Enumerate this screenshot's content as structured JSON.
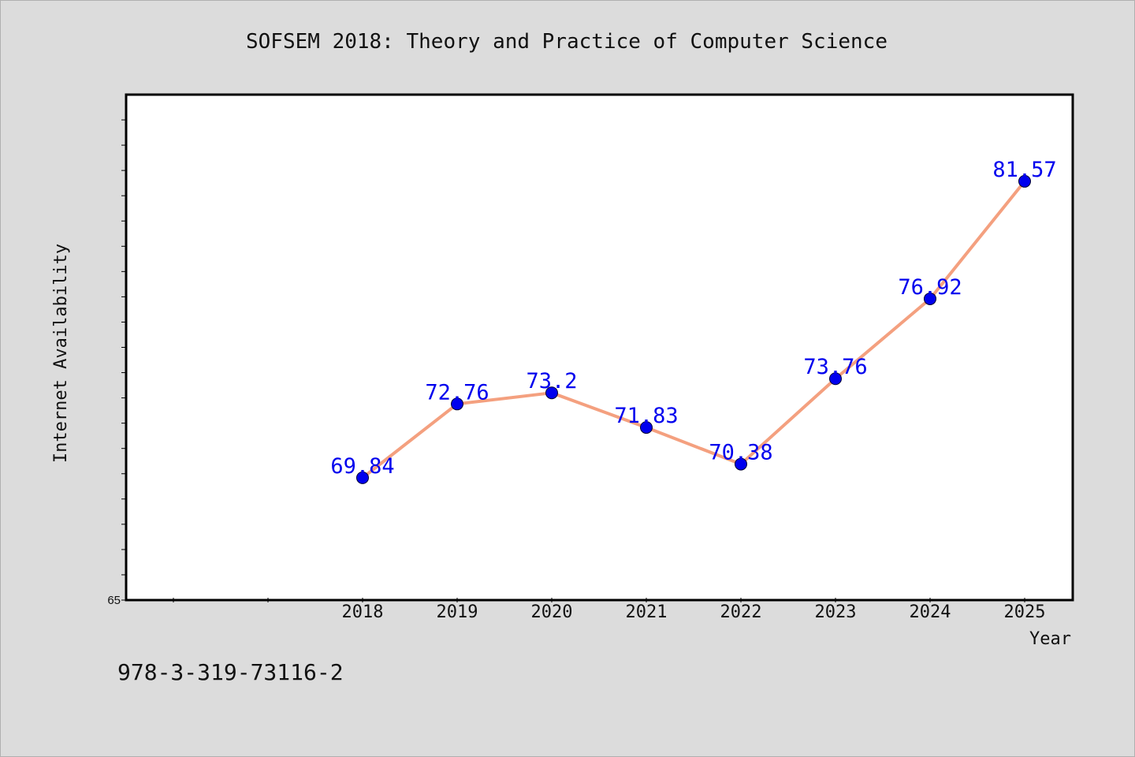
{
  "chart_data": {
    "type": "line",
    "title": "SOFSEM 2018: Theory and Practice of Computer Science",
    "xlabel": "Year",
    "ylabel": "Internet Availability",
    "categories": [
      "2018",
      "2019",
      "2020",
      "2021",
      "2022",
      "2023",
      "2024",
      "2025"
    ],
    "series": [
      {
        "values": [
          69.84,
          72.76,
          73.2,
          71.83,
          70.38,
          73.76,
          76.92,
          81.57
        ],
        "value_labels": [
          "69.84",
          "72.76",
          "73.2",
          "71.83",
          "70.38",
          "73.76",
          "76.92",
          "81.57"
        ],
        "line_color": "#f4a07f",
        "marker_color": "#0000ee",
        "label_color": "#0000ee"
      }
    ],
    "ylim": [
      65,
      85
    ],
    "y_tick_labels": [
      "65"
    ],
    "grid": false,
    "legend": "none"
  },
  "footer": {
    "isbn": "978-3-319-73116-2"
  },
  "colors": {
    "background": "#dcdcdc",
    "plot_background": "#ffffff",
    "axes": "#000000"
  }
}
